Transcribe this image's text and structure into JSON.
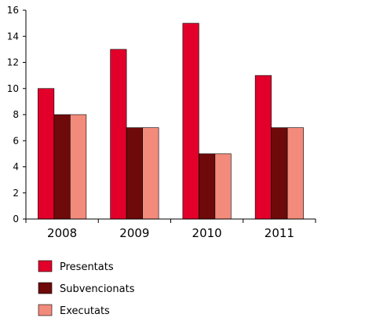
{
  "chart_data": {
    "type": "bar",
    "title": "",
    "xlabel": "",
    "ylabel": "",
    "categories": [
      "2008",
      "2009",
      "2010",
      "2011"
    ],
    "ylim": [
      0,
      16
    ],
    "yticks": [
      "0",
      "2",
      "4",
      "6",
      "8",
      "10",
      "12",
      "14",
      "16"
    ],
    "grid": false,
    "legend_placement": "bottom-left",
    "series": [
      {
        "name": "Presentats",
        "color": "#e2002a",
        "values": [
          10,
          13,
          15,
          11
        ]
      },
      {
        "name": "Subvencionats",
        "color": "#6e0a0a",
        "values": [
          8,
          7,
          5,
          7
        ]
      },
      {
        "name": "Executats",
        "color": "#f28b7c",
        "values": [
          8,
          7,
          5,
          7
        ]
      }
    ]
  }
}
